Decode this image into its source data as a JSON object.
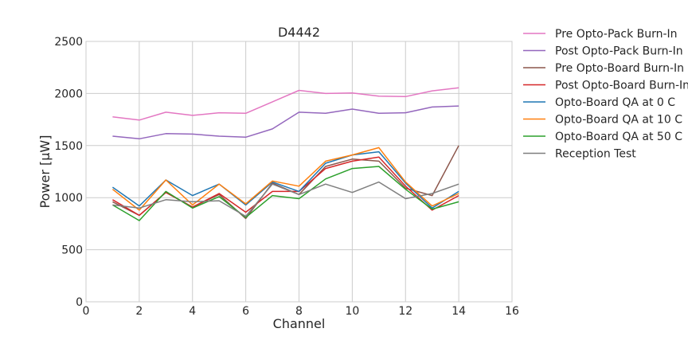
{
  "chart_data": {
    "type": "line",
    "title": "D4442",
    "xlabel": "Channel",
    "ylabel": "Power [μW]",
    "xlim": [
      0,
      16
    ],
    "ylim": [
      0,
      2500
    ],
    "xticks": [
      0,
      2,
      4,
      6,
      8,
      10,
      12,
      14,
      16
    ],
    "yticks": [
      0,
      500,
      1000,
      1500,
      2000,
      2500
    ],
    "grid": true,
    "legend_position": "outside-right",
    "x": [
      1,
      2,
      3,
      4,
      5,
      6,
      7,
      8,
      9,
      10,
      11,
      12,
      13,
      14
    ],
    "series": [
      {
        "name": "Pre Opto-Pack Burn-In",
        "color": "#e377c2",
        "values": [
          1775,
          1745,
          1820,
          1790,
          1815,
          1810,
          1920,
          2030,
          2000,
          2005,
          1975,
          1970,
          2025,
          2055
        ]
      },
      {
        "name": "Post Opto-Pack Burn-In",
        "color": "#9467bd",
        "values": [
          1590,
          1565,
          1615,
          1610,
          1590,
          1580,
          1660,
          1820,
          1810,
          1850,
          1810,
          1815,
          1870,
          1880
        ]
      },
      {
        "name": "Pre Opto-Board Burn-In",
        "color": "#8c564b",
        "values": [
          960,
          830,
          1050,
          910,
          1030,
          800,
          1140,
          1030,
          1300,
          1370,
          1350,
          1090,
          1020,
          1500
        ]
      },
      {
        "name": "Post Opto-Board Burn-In",
        "color": "#d62728",
        "values": [
          980,
          830,
          1050,
          910,
          1040,
          860,
          1060,
          1060,
          1280,
          1350,
          1390,
          1110,
          880,
          1020
        ]
      },
      {
        "name": "Opto-Board QA at 0 C",
        "color": "#1f77b4",
        "values": [
          1100,
          920,
          1170,
          1020,
          1130,
          930,
          1150,
          1060,
          1330,
          1410,
          1440,
          1140,
          900,
          1060
        ]
      },
      {
        "name": "Opto-Board QA at 10 C",
        "color": "#ff7f0e",
        "values": [
          1080,
          880,
          1170,
          930,
          1130,
          940,
          1160,
          1110,
          1350,
          1410,
          1480,
          1150,
          920,
          1040
        ]
      },
      {
        "name": "Opto-Board QA at 50 C",
        "color": "#2ca02c",
        "values": [
          930,
          780,
          1060,
          900,
          1010,
          810,
          1020,
          990,
          1180,
          1280,
          1300,
          1080,
          890,
          960
        ]
      },
      {
        "name": "Reception Test",
        "color": "#7f7f7f",
        "values": [
          930,
          900,
          980,
          960,
          970,
          820,
          1130,
          1030,
          1130,
          1050,
          1150,
          990,
          1040,
          1130
        ]
      }
    ]
  }
}
